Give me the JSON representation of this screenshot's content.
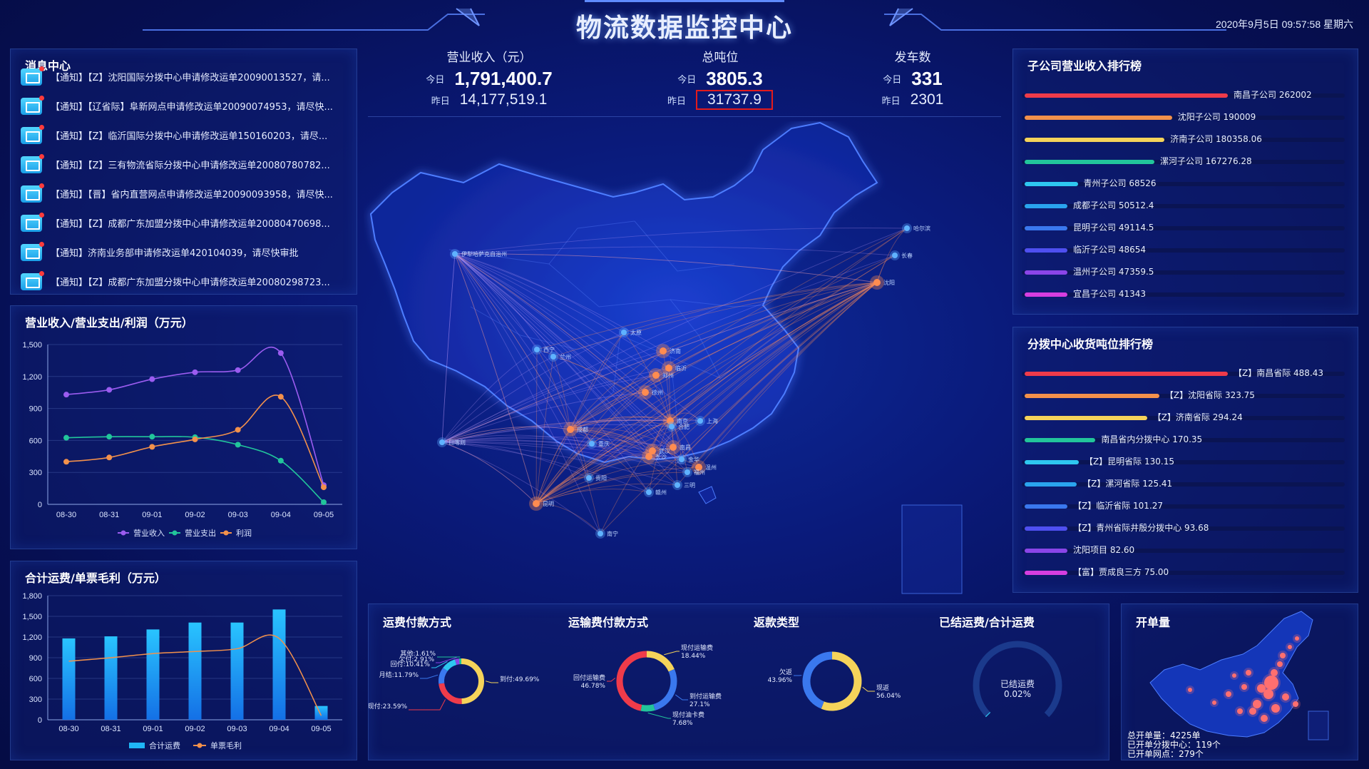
{
  "header": {
    "title": "物流数据监控中心",
    "datetime": "2020年9月5日 09:57:58 星期六"
  },
  "messages": {
    "title": "消息中心",
    "items": [
      "【通知】【Z】沈阳国际分拨中心申请修改运单20090013527，请...",
      "【通知】【辽省际】阜新网点申请修改运单20090074953，请尽快...",
      "【通知】【Z】临沂国际分拨中心申请修改运单150160203，请尽...",
      "【通知】【Z】三有物流省际分拨中心申请修改运单20080780782...",
      "【通知】【晋】省内直营网点申请修改运单20090093958，请尽快...",
      "【通知】【Z】成都广东加盟分拨中心申请修改运单20080470698...",
      "【通知】济南业务部申请修改运单420104039，请尽快审批",
      "【通知】【Z】成都广东加盟分拨中心申请修改运单20080298723..."
    ]
  },
  "kpis": {
    "today_label": "今日",
    "yesterday_label": "昨日",
    "items": [
      {
        "title": "营业收入（元）",
        "today": "1,791,400.7",
        "yesterday": "14,177,519.1"
      },
      {
        "title": "总吨位",
        "today": "3805.3",
        "yesterday": "31737.9"
      },
      {
        "title": "发车数",
        "today": "331",
        "yesterday": "2301"
      }
    ]
  },
  "revenue_panel": {
    "title": "营业收入/营业支出/利润（万元）"
  },
  "freight_panel": {
    "title": "合计运费/单票毛利（万元）"
  },
  "subsidiary_rank": {
    "title": "子公司营业收入排行榜",
    "items": [
      {
        "label": "南昌子公司 262002",
        "value": 262002,
        "color": "#ef3b4a"
      },
      {
        "label": "沈阳子公司 190009",
        "value": 190009,
        "color": "#f3914b"
      },
      {
        "label": "济南子公司 180358.06",
        "value": 180358.06,
        "color": "#f5d35a"
      },
      {
        "label": "漯河子公司 167276.28",
        "value": 167276.28,
        "color": "#22c59b"
      },
      {
        "label": "青州子公司 68526",
        "value": 68526,
        "color": "#2ec7f0"
      },
      {
        "label": "成都子公司 50512.4",
        "value": 50512.4,
        "color": "#2aa4ee"
      },
      {
        "label": "昆明子公司 49114.5",
        "value": 49114.5,
        "color": "#3a78ee"
      },
      {
        "label": "临沂子公司 48654",
        "value": 48654,
        "color": "#4f4ff0"
      },
      {
        "label": "温州子公司 47359.5",
        "value": 47359.5,
        "color": "#8a45e8"
      },
      {
        "label": "宜昌子公司 41343",
        "value": 41343,
        "color": "#d63ee0"
      }
    ]
  },
  "hub_rank": {
    "title": "分拨中心收货吨位排行榜",
    "items": [
      {
        "label": "【Z】南昌省际 488.43",
        "value": 488.43,
        "color": "#ef3b4a"
      },
      {
        "label": "【Z】沈阳省际 323.75",
        "value": 323.75,
        "color": "#f3914b"
      },
      {
        "label": "【Z】济南省际 294.24",
        "value": 294.24,
        "color": "#f5d35a"
      },
      {
        "label": "南昌省内分拨中心 170.35",
        "value": 170.35,
        "color": "#22c59b"
      },
      {
        "label": "【Z】昆明省际 130.15",
        "value": 130.15,
        "color": "#2ec7f0"
      },
      {
        "label": "【Z】漯河省际 125.41",
        "value": 125.41,
        "color": "#2aa4ee"
      },
      {
        "label": "【Z】临沂省际 101.27",
        "value": 101.27,
        "color": "#3a78ee"
      },
      {
        "label": "【Z】青州省际井殷分拨中心 93.68",
        "value": 93.68,
        "color": "#4f4ff0"
      },
      {
        "label": "沈阳项目 82.60",
        "value": 82.6,
        "color": "#8a45e8"
      },
      {
        "label": "【富】贾成良三方 75.00",
        "value": 75.0,
        "color": "#d63ee0"
      }
    ]
  },
  "donuts": {
    "d1": {
      "title": "运费付款方式"
    },
    "d2": {
      "title": "运输费付款方式"
    },
    "d3": {
      "title": "返款类型"
    },
    "d4": {
      "title": "已结运费/合计运费",
      "center_label": "已结运费",
      "center_value": "0.02%",
      "value": 0.02
    }
  },
  "kaidan": {
    "title": "开单量",
    "stats": [
      "总开单量：4225单",
      "已开单分拨中心：119个",
      "已开单网点：279个"
    ]
  },
  "map_cities": [
    "伊犁哈萨克自治州",
    "哈尔滨",
    "长春",
    "沈阳",
    "西宁",
    "兰州",
    "太原",
    "济南",
    "郑州",
    "临沂",
    "徐州",
    "南京",
    "上海",
    "合肥",
    "成都",
    "重庆",
    "武汉",
    "南昌",
    "长沙",
    "温州",
    "金华",
    "贵阳",
    "福州",
    "三明",
    "赣州",
    "昆明",
    "南宁",
    "日喀则"
  ],
  "chart_data": [
    {
      "type": "line",
      "title": "营业收入/营业支出/利润（万元）",
      "categories": [
        "08-30",
        "08-31",
        "09-01",
        "09-02",
        "09-03",
        "09-04",
        "09-05"
      ],
      "ylim": [
        0,
        1500
      ],
      "yticks": [
        0,
        300,
        600,
        900,
        1200,
        1500
      ],
      "grid": true,
      "legend_position": "bottom",
      "series": [
        {
          "name": "营业收入",
          "color": "#9b5cf0",
          "values": [
            1030,
            1075,
            1175,
            1240,
            1260,
            1420,
            180
          ]
        },
        {
          "name": "营业支出",
          "color": "#22c59b",
          "values": [
            625,
            635,
            635,
            630,
            560,
            410,
            20
          ]
        },
        {
          "name": "利润",
          "color": "#f3914b",
          "values": [
            400,
            440,
            540,
            610,
            700,
            1010,
            160
          ]
        }
      ]
    },
    {
      "type": "bar",
      "title": "合计运费/单票毛利（万元）",
      "categories": [
        "08-30",
        "08-31",
        "09-01",
        "09-02",
        "09-03",
        "09-04",
        "09-05"
      ],
      "ylim": [
        0,
        1800
      ],
      "yticks": [
        0,
        300,
        600,
        900,
        1200,
        1500,
        1800
      ],
      "grid": true,
      "legend_position": "bottom",
      "series": [
        {
          "name": "合计运费",
          "color": "#1fb6f5",
          "kind": "bar",
          "values": [
            1180,
            1210,
            1310,
            1410,
            1410,
            1600,
            200
          ]
        },
        {
          "name": "单票毛利",
          "color": "#f3914b",
          "kind": "line",
          "values": [
            850,
            900,
            960,
            990,
            1030,
            1180,
            60
          ]
        }
      ]
    },
    {
      "type": "pie",
      "title": "运费付款方式",
      "slices": [
        {
          "label": "到付:49.69%",
          "value": 49.69,
          "color": "#f5d35a"
        },
        {
          "label": "现付:23.59%",
          "value": 23.59,
          "color": "#ef3b4a"
        },
        {
          "label": "月结:11.79%",
          "value": 11.79,
          "color": "#3a78ee"
        },
        {
          "label": "回付:10.41%",
          "value": 10.41,
          "color": "#2ec7f0"
        },
        {
          "label": "欠付:2.91%",
          "value": 2.91,
          "color": "#8a45e8"
        },
        {
          "label": "其他:1.61%",
          "value": 1.61,
          "color": "#22c59b"
        }
      ]
    },
    {
      "type": "pie",
      "title": "运输费付款方式",
      "slices": [
        {
          "label": "现付运输费 18.44%",
          "value": 18.44,
          "color": "#f5d35a"
        },
        {
          "label": "到付运输费 27.1%",
          "value": 27.1,
          "color": "#3a78ee"
        },
        {
          "label": "现付油卡费 7.68%",
          "value": 7.68,
          "color": "#22c59b"
        },
        {
          "label": "回付运输费 46.78%",
          "value": 46.78,
          "color": "#ef3b4a"
        }
      ]
    },
    {
      "type": "pie",
      "title": "返款类型",
      "slices": [
        {
          "label": "现返 56.04%",
          "value": 56.04,
          "color": "#f5d35a"
        },
        {
          "label": "欠返 43.96%",
          "value": 43.96,
          "color": "#3a78ee"
        }
      ]
    }
  ]
}
